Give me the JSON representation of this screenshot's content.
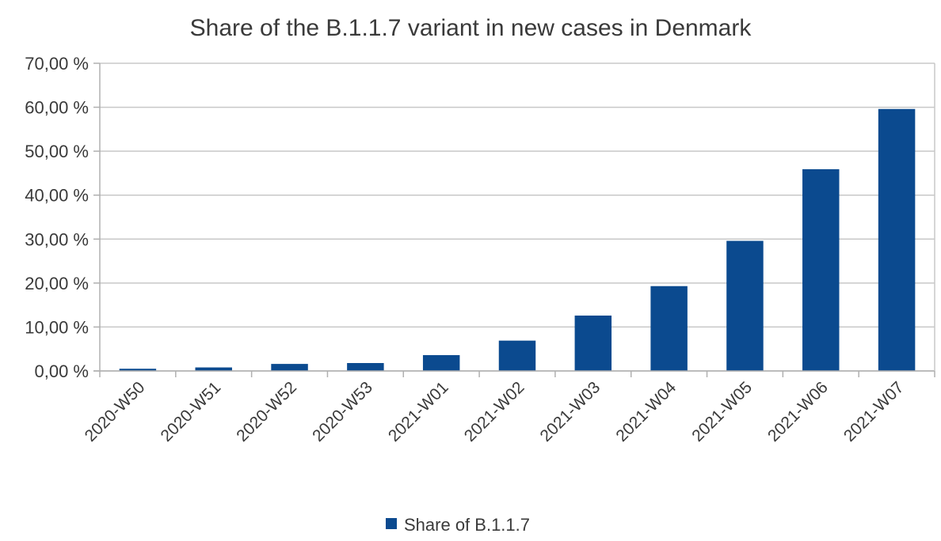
{
  "chart_data": {
    "type": "bar",
    "title": "Share of the B.1.1.7 variant in new cases in Denmark",
    "xlabel": "",
    "ylabel": "",
    "categories": [
      "2020-W50",
      "2020-W51",
      "2020-W52",
      "2020-W53",
      "2021-W01",
      "2021-W02",
      "2021-W03",
      "2021-W04",
      "2021-W05",
      "2021-W06",
      "2021-W07"
    ],
    "series": [
      {
        "name": "Share of B.1.1.7",
        "values": [
          0.5,
          0.8,
          1.6,
          1.8,
          3.6,
          6.9,
          12.6,
          19.3,
          29.6,
          45.9,
          59.6
        ],
        "color": "#0b4a8f"
      }
    ],
    "ylim": [
      0,
      70
    ],
    "yticks": [
      0,
      10,
      20,
      30,
      40,
      50,
      60,
      70
    ],
    "ytick_labels": [
      "0,00 %",
      "10,00 %",
      "20,00 %",
      "30,00 %",
      "40,00 %",
      "50,00 %",
      "60,00 %",
      "70,00 %"
    ],
    "grid": true,
    "legend_position": "bottom"
  },
  "colors": {
    "bar": "#0b4a8f",
    "grid": "#c8c8c8",
    "axis": "#b0b0b0",
    "text": "#3a3a3a"
  }
}
